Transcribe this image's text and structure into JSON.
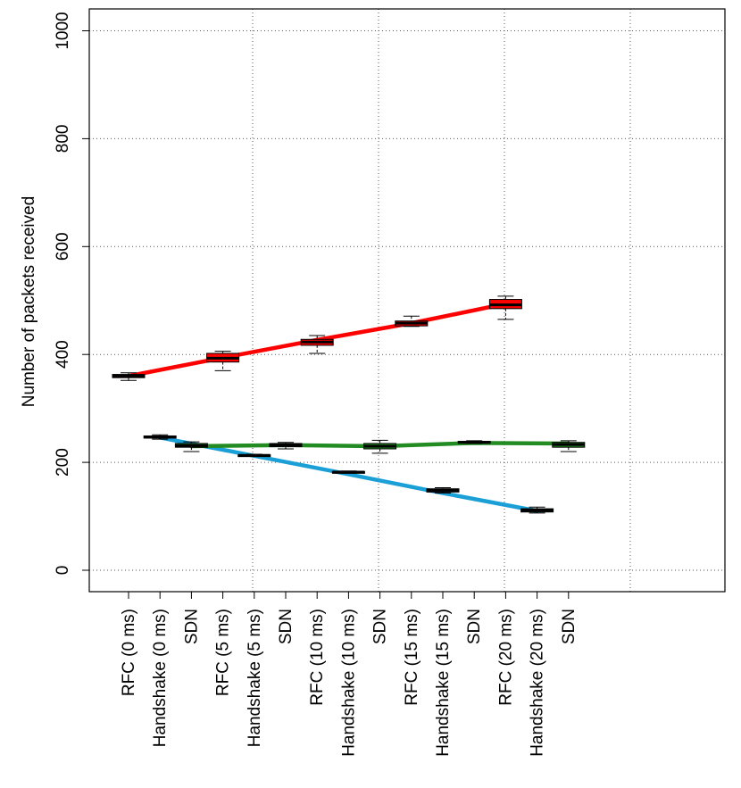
{
  "chart_data": {
    "type": "box",
    "title": "",
    "xlabel": "",
    "ylabel": "Number of packets received",
    "ylim": [
      -40,
      1040
    ],
    "yticks": [
      0,
      200,
      400,
      600,
      800,
      1000
    ],
    "grid": true,
    "categories": [
      "RFC (0 ms)",
      "Handshake (0 ms)",
      "SDN",
      "RFC (5 ms)",
      "Handshake (5 ms)",
      "SDN",
      "RFC (10 ms)",
      "Handshake (10 ms)",
      "SDN",
      "RFC (15 ms)",
      "Handshake (15 ms)",
      "SDN",
      "RFC (20 ms)",
      "Handshake (20 ms)",
      "SDN"
    ],
    "boxes": [
      {
        "category": "RFC (0 ms)",
        "group": "RFC",
        "min": 352,
        "q1": 357,
        "median": 360,
        "q3": 363,
        "max": 366
      },
      {
        "category": "Handshake (0 ms)",
        "group": "Handshake",
        "min": 243,
        "q1": 245,
        "median": 247,
        "q3": 249,
        "max": 251
      },
      {
        "category": "SDN",
        "group": "SDN",
        "min": 220,
        "q1": 228,
        "median": 231,
        "q3": 235,
        "max": 238
      },
      {
        "category": "RFC (5 ms)",
        "group": "RFC",
        "min": 370,
        "q1": 386,
        "median": 393,
        "q3": 402,
        "max": 406
      },
      {
        "category": "Handshake (5 ms)",
        "group": "Handshake",
        "min": 211,
        "q1": 212,
        "median": 213,
        "q3": 214,
        "max": 215
      },
      {
        "category": "SDN",
        "group": "SDN",
        "min": 225,
        "q1": 229,
        "median": 232,
        "q3": 235,
        "max": 237
      },
      {
        "category": "RFC (10 ms)",
        "group": "RFC",
        "min": 402,
        "q1": 417,
        "median": 423,
        "q3": 428,
        "max": 435
      },
      {
        "category": "Handshake (10 ms)",
        "group": "Handshake",
        "min": 180,
        "q1": 181,
        "median": 182,
        "q3": 183,
        "max": 184
      },
      {
        "category": "SDN",
        "group": "SDN",
        "min": 217,
        "q1": 225,
        "median": 230,
        "q3": 235,
        "max": 241
      },
      {
        "category": "RFC (15 ms)",
        "group": "RFC",
        "min": 452,
        "q1": 453,
        "median": 458,
        "q3": 462,
        "max": 471
      },
      {
        "category": "Handshake (15 ms)",
        "group": "Handshake",
        "min": 143,
        "q1": 145,
        "median": 148,
        "q3": 151,
        "max": 153
      },
      {
        "category": "SDN",
        "group": "SDN",
        "min": 235,
        "q1": 236,
        "median": 237,
        "q3": 239,
        "max": 240
      },
      {
        "category": "RFC (20 ms)",
        "group": "RFC",
        "min": 465,
        "q1": 485,
        "median": 492,
        "q3": 502,
        "max": 508
      },
      {
        "category": "Handshake (20 ms)",
        "group": "Handshake",
        "min": 106,
        "q1": 108,
        "median": 111,
        "q3": 114,
        "max": 117
      },
      {
        "category": "SDN",
        "group": "SDN",
        "min": 220,
        "q1": 228,
        "median": 233,
        "q3": 237,
        "max": 240
      }
    ],
    "series": [
      {
        "name": "RFC",
        "color": "#ff0000",
        "values": [
          360,
          394,
          427,
          458,
          494
        ]
      },
      {
        "name": "Handshake",
        "color": "#1a9fd6",
        "values": [
          246,
          212,
          178,
          143,
          110
        ]
      },
      {
        "name": "SDN",
        "color": "#228b22",
        "values": [
          230,
          232,
          230,
          236,
          235
        ]
      }
    ],
    "box_colors": {
      "RFC": "#ff0000",
      "Handshake": "#1a9fd6",
      "SDN": "#228b22"
    }
  }
}
